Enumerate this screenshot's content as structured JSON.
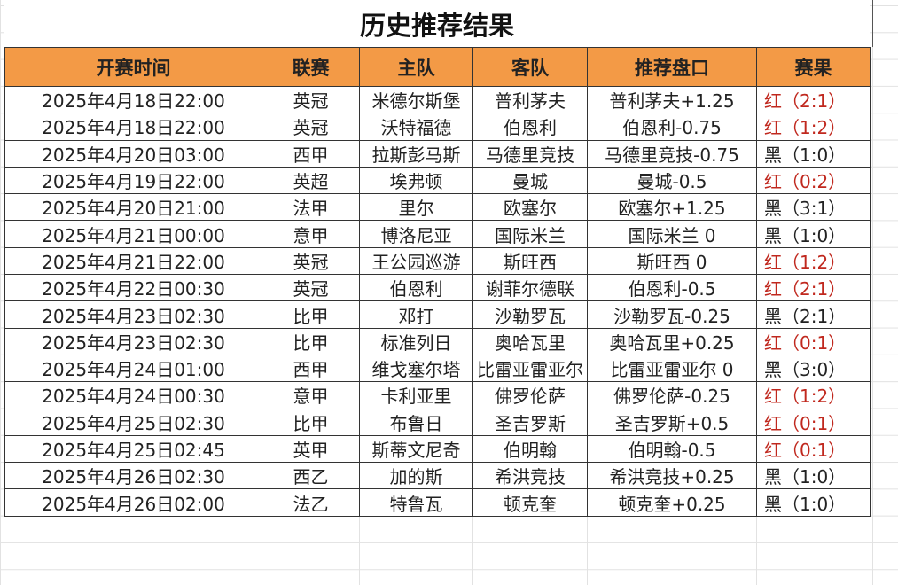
{
  "title": "历史推荐结果",
  "headers": [
    "开赛时间",
    "联赛",
    "主队",
    "客队",
    "推荐盘口",
    "赛果"
  ],
  "colors": {
    "header_bg": "#f39a46",
    "win": "#c0281e",
    "loss": "#222222"
  },
  "rows": [
    {
      "time": "2025年4月18日22:00",
      "league": "英冠",
      "home": "米德尔斯堡",
      "away": "普利茅夫",
      "pick": "普利茅夫+1.25",
      "result": "红（2:1）",
      "win": true
    },
    {
      "time": "2025年4月18日22:00",
      "league": "英冠",
      "home": "沃特福德",
      "away": "伯恩利",
      "pick": "伯恩利-0.75",
      "result": "红（1:2）",
      "win": true
    },
    {
      "time": "2025年4月20日03:00",
      "league": "西甲",
      "home": "拉斯彭马斯",
      "away": "马德里竞技",
      "pick": "马德里竞技-0.75",
      "result": "黑（1:0）",
      "win": false
    },
    {
      "time": "2025年4月19日22:00",
      "league": "英超",
      "home": "埃弗顿",
      "away": "曼城",
      "pick": "曼城-0.5",
      "result": "红（0:2）",
      "win": true
    },
    {
      "time": "2025年4月20日21:00",
      "league": "法甲",
      "home": "里尔",
      "away": "欧塞尔",
      "pick": "欧塞尔+1.25",
      "result": "黑（3:1）",
      "win": false
    },
    {
      "time": "2025年4月21日00:00",
      "league": "意甲",
      "home": "博洛尼亚",
      "away": "国际米兰",
      "pick": "国际米兰 0",
      "result": "黑（1:0）",
      "win": false
    },
    {
      "time": "2025年4月21日22:00",
      "league": "英冠",
      "home": "王公园巡游",
      "away": "斯旺西",
      "pick": "斯旺西 0",
      "result": "红（1:2）",
      "win": true
    },
    {
      "time": "2025年4月22日00:30",
      "league": "英冠",
      "home": "伯恩利",
      "away": "谢菲尔德联",
      "pick": "伯恩利-0.5",
      "result": "红（2:1）",
      "win": true
    },
    {
      "time": "2025年4月23日02:30",
      "league": "比甲",
      "home": "邓打",
      "away": "沙勒罗瓦",
      "pick": "沙勒罗瓦-0.25",
      "result": "黑（2:1）",
      "win": false
    },
    {
      "time": "2025年4月23日02:30",
      "league": "比甲",
      "home": "标准列日",
      "away": "奥哈瓦里",
      "pick": "奥哈瓦里+0.25",
      "result": "红（0:1）",
      "win": true
    },
    {
      "time": "2025年4月24日01:00",
      "league": "西甲",
      "home": "维戈塞尔塔",
      "away": "比雷亚雷亚尔",
      "pick": "比雷亚雷亚尔 0",
      "result": "黑（3:0）",
      "win": false
    },
    {
      "time": "2025年4月24日00:30",
      "league": "意甲",
      "home": "卡利亚里",
      "away": "佛罗伦萨",
      "pick": "佛罗伦萨-0.25",
      "result": "红（1:2）",
      "win": true
    },
    {
      "time": "2025年4月25日02:30",
      "league": "比甲",
      "home": "布鲁日",
      "away": "圣吉罗斯",
      "pick": "圣吉罗斯+0.5",
      "result": "红（0:1）",
      "win": true
    },
    {
      "time": "2025年4月25日02:45",
      "league": "英甲",
      "home": "斯蒂文尼奇",
      "away": "伯明翰",
      "pick": "伯明翰-0.5",
      "result": "红（0:1）",
      "win": true
    },
    {
      "time": "2025年4月26日02:30",
      "league": "西乙",
      "home": "加的斯",
      "away": "希洪竞技",
      "pick": "希洪竞技+0.25",
      "result": "黑（1:0）",
      "win": false
    },
    {
      "time": "2025年4月26日02:00",
      "league": "法乙",
      "home": "特鲁瓦",
      "away": "顿克奎",
      "pick": "顿克奎+0.25",
      "result": "黑（1:0）",
      "win": false
    }
  ]
}
